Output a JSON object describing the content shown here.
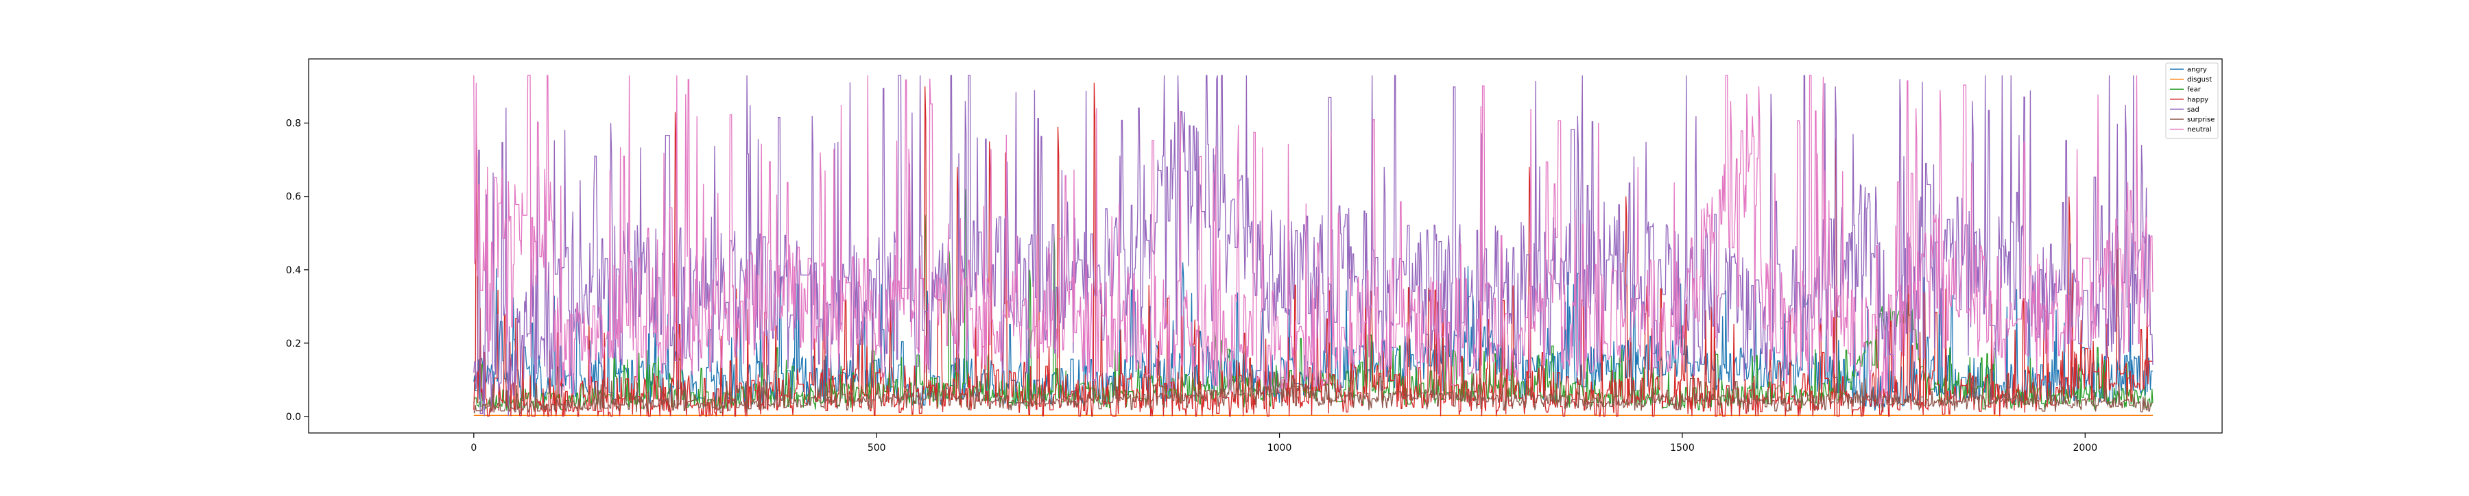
{
  "chart_data": {
    "type": "line",
    "title": "",
    "xlabel": "",
    "ylabel": "",
    "xlim": [
      -205,
      2170
    ],
    "ylim": [
      -0.045,
      0.975
    ],
    "x_ticks": [
      0,
      500,
      1000,
      1500,
      2000
    ],
    "y_ticks": [
      0.0,
      0.2,
      0.4,
      0.6,
      0.8
    ],
    "x_tick_labels": [
      "0",
      "500",
      "1000",
      "1500",
      "2000"
    ],
    "y_tick_labels": [
      "0.0",
      "0.2",
      "0.4",
      "0.6",
      "0.8"
    ],
    "grid": false,
    "legend_position": "top-right",
    "n_points": 2085,
    "x": [
      0,
      2084
    ],
    "series": [
      {
        "name": "angry",
        "color": "#1f77b4",
        "keyframes": [
          [
            0,
            0.13
          ],
          [
            50,
            0.15
          ],
          [
            100,
            0.08
          ],
          [
            150,
            0.12
          ],
          [
            200,
            0.1
          ],
          [
            300,
            0.09
          ],
          [
            400,
            0.1
          ],
          [
            500,
            0.12
          ],
          [
            550,
            0.08
          ],
          [
            600,
            0.1
          ],
          [
            700,
            0.09
          ],
          [
            800,
            0.11
          ],
          [
            900,
            0.14
          ],
          [
            1000,
            0.12
          ],
          [
            1100,
            0.14
          ],
          [
            1200,
            0.18
          ],
          [
            1250,
            0.2
          ],
          [
            1300,
            0.12
          ],
          [
            1400,
            0.15
          ],
          [
            1500,
            0.17
          ],
          [
            1600,
            0.14
          ],
          [
            1700,
            0.1
          ],
          [
            1750,
            0.06
          ],
          [
            1800,
            0.12
          ],
          [
            1900,
            0.09
          ],
          [
            2000,
            0.1
          ],
          [
            2084,
            0.12
          ]
        ],
        "spikes": [
          [
            380,
            0.38
          ],
          [
            880,
            0.42
          ],
          [
            1240,
            0.33
          ],
          [
            1360,
            0.3
          ],
          [
            1440,
            0.36
          ],
          [
            1650,
            0.33
          ],
          [
            1730,
            0.3
          ],
          [
            1800,
            0.38
          ],
          [
            1930,
            0.32
          ]
        ]
      },
      {
        "name": "disgust",
        "color": "#ff7f0e",
        "keyframes": [
          [
            0,
            0.003
          ],
          [
            2084,
            0.003
          ]
        ],
        "spikes": []
      },
      {
        "name": "fear",
        "color": "#2ca02c",
        "keyframes": [
          [
            0,
            0.04
          ],
          [
            100,
            0.05
          ],
          [
            200,
            0.06
          ],
          [
            300,
            0.05
          ],
          [
            400,
            0.06
          ],
          [
            500,
            0.07
          ],
          [
            600,
            0.08
          ],
          [
            700,
            0.06
          ],
          [
            800,
            0.07
          ],
          [
            900,
            0.09
          ],
          [
            1000,
            0.08
          ],
          [
            1100,
            0.1
          ],
          [
            1200,
            0.07
          ],
          [
            1300,
            0.08
          ],
          [
            1400,
            0.06
          ],
          [
            1500,
            0.05
          ],
          [
            1600,
            0.06
          ],
          [
            1700,
            0.07
          ],
          [
            1750,
            0.29
          ],
          [
            1780,
            0.28
          ],
          [
            1800,
            0.1
          ],
          [
            1900,
            0.05
          ],
          [
            2000,
            0.06
          ],
          [
            2084,
            0.05
          ]
        ],
        "spikes": [
          [
            560,
            0.55
          ],
          [
            590,
            0.45
          ],
          [
            610,
            0.62
          ],
          [
            690,
            0.4
          ],
          [
            720,
            0.5
          ],
          [
            920,
            0.23
          ],
          [
            1690,
            0.3
          ]
        ]
      },
      {
        "name": "happy",
        "color": "#d62728",
        "keyframes": [
          [
            0,
            0.05
          ],
          [
            100,
            0.04
          ],
          [
            200,
            0.05
          ],
          [
            300,
            0.04
          ],
          [
            400,
            0.06
          ],
          [
            500,
            0.07
          ],
          [
            600,
            0.08
          ],
          [
            700,
            0.07
          ],
          [
            800,
            0.06
          ],
          [
            900,
            0.05
          ],
          [
            1000,
            0.06
          ],
          [
            1100,
            0.08
          ],
          [
            1200,
            0.06
          ],
          [
            1300,
            0.07
          ],
          [
            1400,
            0.06
          ],
          [
            1500,
            0.05
          ],
          [
            1600,
            0.06
          ],
          [
            1700,
            0.05
          ],
          [
            1800,
            0.06
          ],
          [
            1900,
            0.05
          ],
          [
            2000,
            0.12
          ],
          [
            2084,
            0.1
          ]
        ],
        "spikes": [
          [
            3,
            0.78
          ],
          [
            250,
            0.83
          ],
          [
            560,
            0.9
          ],
          [
            600,
            0.68
          ],
          [
            640,
            0.75
          ],
          [
            660,
            0.72
          ],
          [
            700,
            0.78
          ],
          [
            725,
            0.79
          ],
          [
            770,
            0.91
          ],
          [
            1310,
            0.68
          ],
          [
            1430,
            0.6
          ],
          [
            1690,
            0.76
          ],
          [
            1980,
            0.6
          ],
          [
            2040,
            0.52
          ]
        ]
      },
      {
        "name": "sad",
        "color": "#9467bd",
        "keyframes": [
          [
            0,
            0.12
          ],
          [
            50,
            0.16
          ],
          [
            100,
            0.3
          ],
          [
            150,
            0.42
          ],
          [
            200,
            0.38
          ],
          [
            300,
            0.35
          ],
          [
            400,
            0.36
          ],
          [
            500,
            0.34
          ],
          [
            600,
            0.4
          ],
          [
            700,
            0.38
          ],
          [
            800,
            0.42
          ],
          [
            880,
            0.68
          ],
          [
            920,
            0.62
          ],
          [
            1000,
            0.4
          ],
          [
            1100,
            0.42
          ],
          [
            1200,
            0.36
          ],
          [
            1300,
            0.38
          ],
          [
            1400,
            0.44
          ],
          [
            1500,
            0.36
          ],
          [
            1600,
            0.3
          ],
          [
            1700,
            0.42
          ],
          [
            1720,
            0.52
          ],
          [
            1740,
            0.45
          ],
          [
            1760,
            0.2
          ],
          [
            1800,
            0.5
          ],
          [
            1900,
            0.38
          ],
          [
            2000,
            0.34
          ],
          [
            2084,
            0.35
          ]
        ],
        "spikes": [
          [
            170,
            0.8
          ],
          [
            420,
            0.82
          ],
          [
            610,
            0.86
          ],
          [
            880,
            0.8
          ],
          [
            1130,
            0.68
          ],
          [
            1370,
            0.82
          ],
          [
            1610,
            0.88
          ],
          [
            1690,
            0.9
          ],
          [
            1770,
            0.92
          ],
          [
            1860,
            0.86
          ],
          [
            2050,
            0.85
          ],
          [
            2070,
            0.74
          ]
        ]
      },
      {
        "name": "surprise",
        "color": "#8c564b",
        "keyframes": [
          [
            0,
            0.02
          ],
          [
            100,
            0.03
          ],
          [
            200,
            0.04
          ],
          [
            300,
            0.03
          ],
          [
            400,
            0.04
          ],
          [
            500,
            0.05
          ],
          [
            600,
            0.06
          ],
          [
            700,
            0.04
          ],
          [
            800,
            0.05
          ],
          [
            900,
            0.06
          ],
          [
            1000,
            0.07
          ],
          [
            1100,
            0.05
          ],
          [
            1200,
            0.06
          ],
          [
            1300,
            0.05
          ],
          [
            1400,
            0.04
          ],
          [
            1500,
            0.05
          ],
          [
            1600,
            0.04
          ],
          [
            1700,
            0.05
          ],
          [
            1800,
            0.04
          ],
          [
            1900,
            0.05
          ],
          [
            2000,
            0.04
          ],
          [
            2084,
            0.04
          ]
        ],
        "spikes": []
      },
      {
        "name": "neutral",
        "color": "#e377c2",
        "keyframes": [
          [
            0,
            0.46
          ],
          [
            20,
            0.55
          ],
          [
            60,
            0.55
          ],
          [
            80,
            0.48
          ],
          [
            95,
            0.6
          ],
          [
            100,
            0.18
          ],
          [
            150,
            0.24
          ],
          [
            200,
            0.3
          ],
          [
            300,
            0.32
          ],
          [
            400,
            0.34
          ],
          [
            500,
            0.3
          ],
          [
            600,
            0.28
          ],
          [
            700,
            0.3
          ],
          [
            800,
            0.25
          ],
          [
            900,
            0.22
          ],
          [
            1000,
            0.2
          ],
          [
            1100,
            0.26
          ],
          [
            1200,
            0.24
          ],
          [
            1300,
            0.26
          ],
          [
            1400,
            0.28
          ],
          [
            1500,
            0.3
          ],
          [
            1560,
            0.6
          ],
          [
            1590,
            0.7
          ],
          [
            1600,
            0.3
          ],
          [
            1700,
            0.26
          ],
          [
            1750,
            0.15
          ],
          [
            1800,
            0.45
          ],
          [
            1850,
            0.38
          ],
          [
            1900,
            0.3
          ],
          [
            2000,
            0.3
          ],
          [
            2084,
            0.6
          ]
        ],
        "spikes": [
          [
            95,
            0.64
          ],
          [
            430,
            0.72
          ],
          [
            540,
            0.73
          ],
          [
            1560,
            0.86
          ],
          [
            1580,
            0.88
          ],
          [
            1595,
            0.9
          ],
          [
            1790,
            0.84
          ],
          [
            1820,
            0.89
          ]
        ]
      }
    ]
  }
}
